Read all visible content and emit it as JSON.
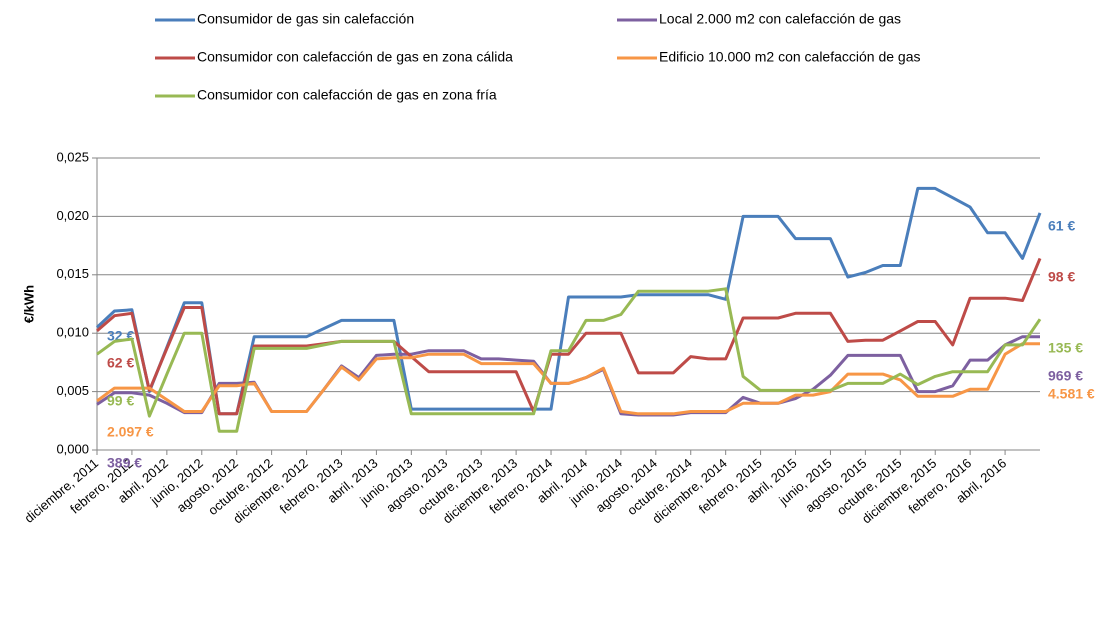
{
  "chart_data": {
    "type": "line",
    "ylabel": "€/kWh",
    "categories": [
      "diciembre, 2011",
      null,
      "febrero, 2012",
      null,
      "abril, 2012",
      null,
      "junio, 2012",
      null,
      "agosto, 2012",
      null,
      "octubre, 2012",
      null,
      "diciembre, 2012",
      null,
      "febrero, 2013",
      null,
      "abril, 2013",
      null,
      "junio, 2013",
      null,
      "agosto, 2013",
      null,
      "octubre, 2013",
      null,
      "diciembre, 2013",
      null,
      "febrero, 2014",
      null,
      "abril, 2014",
      null,
      "junio, 2014",
      null,
      "agosto, 2014",
      null,
      "octubre, 2014",
      null,
      "diciembre, 2014",
      null,
      "febrero, 2015",
      null,
      "abril, 2015",
      null,
      "junio, 2015",
      null,
      "agosto, 2015",
      null,
      "octubre, 2015",
      null,
      "diciembre, 2015",
      null,
      "febrero, 2016",
      null,
      "abril, 2016",
      null,
      null
    ],
    "ylim": [
      0,
      0.025
    ],
    "yticks": [
      {
        "value": 0,
        "label": "0,000"
      },
      {
        "value": 0.005,
        "label": "0,005"
      },
      {
        "value": 0.01,
        "label": "0,010"
      },
      {
        "value": 0.015,
        "label": "0,015"
      },
      {
        "value": 0.02,
        "label": "0,020"
      },
      {
        "value": 0.025,
        "label": "0,025"
      }
    ],
    "grid": true,
    "legend": "top",
    "series": [
      {
        "name": "Consumidor de gas sin calefacción",
        "color": "#4a7ebb",
        "start_label": "32 €",
        "end_label": "61 €",
        "values": [
          0.0105,
          0.0119,
          0.012,
          0.005,
          0.0088,
          0.0126,
          0.0126,
          0.0031,
          0.0031,
          0.0097,
          0.0097,
          0.0097,
          0.0097,
          0.0104,
          0.0111,
          0.0111,
          0.0111,
          0.0111,
          0.0035,
          0.0035,
          0.0035,
          0.0035,
          0.0035,
          0.0035,
          0.0035,
          0.0035,
          0.0035,
          0.0131,
          0.0131,
          0.0131,
          0.0131,
          0.0133,
          0.0133,
          0.0133,
          0.0133,
          0.0133,
          0.0129,
          0.02,
          0.02,
          0.02,
          0.0181,
          0.0181,
          0.0181,
          0.0148,
          0.0152,
          0.0158,
          0.0158,
          0.0224,
          0.0224,
          0.0216,
          0.0208,
          0.0186,
          0.0186,
          0.0164,
          0.0203
        ]
      },
      {
        "name": "Local 2.000 m2 con calefacción de gas",
        "color": "#7d60a0",
        "start_label": "389 €",
        "end_label": "969 €",
        "values": [
          0.0039,
          0.0049,
          0.0049,
          0.0047,
          0.004,
          0.0032,
          0.0032,
          0.0057,
          0.0057,
          0.0058,
          0.0033,
          0.0033,
          0.0033,
          0.0052,
          0.0072,
          0.0062,
          0.0081,
          0.0082,
          0.0082,
          0.0085,
          0.0085,
          0.0085,
          0.0078,
          0.0078,
          0.0077,
          0.0076,
          0.0057,
          0.0057,
          0.0062,
          0.0069,
          0.0031,
          0.003,
          0.003,
          0.003,
          0.0032,
          0.0032,
          0.0032,
          0.0045,
          0.004,
          0.004,
          0.0044,
          0.0052,
          0.0064,
          0.0081,
          0.0081,
          0.0081,
          0.0081,
          0.005,
          0.005,
          0.0055,
          0.0077,
          0.0077,
          0.009,
          0.0097,
          0.0097
        ]
      },
      {
        "name": "Consumidor con calefacción de gas en zona cálida",
        "color": "#be4b48",
        "start_label": "62 €",
        "end_label": "98 €",
        "values": [
          0.0102,
          0.0115,
          0.0117,
          0.0051,
          0.0087,
          0.0122,
          0.0122,
          0.0031,
          0.0031,
          0.0089,
          0.0089,
          0.0089,
          0.0089,
          0.0091,
          0.0093,
          0.0093,
          0.0093,
          0.0093,
          0.008,
          0.0067,
          0.0067,
          0.0067,
          0.0067,
          0.0067,
          0.0067,
          0.0033,
          0.0082,
          0.0082,
          0.01,
          0.01,
          0.01,
          0.0066,
          0.0066,
          0.0066,
          0.008,
          0.0078,
          0.0078,
          0.0113,
          0.0113,
          0.0113,
          0.0117,
          0.0117,
          0.0117,
          0.0093,
          0.0094,
          0.0094,
          0.0102,
          0.011,
          0.011,
          0.009,
          0.013,
          0.013,
          0.013,
          0.0128,
          0.0164
        ]
      },
      {
        "name": "Edificio 10.000 m2 con calefacción de gas",
        "color": "#f79646",
        "start_label": "2.097 €",
        "end_label": "4.581 €",
        "values": [
          0.0042,
          0.0053,
          0.0053,
          0.0053,
          0.0043,
          0.0033,
          0.0033,
          0.0055,
          0.0055,
          0.0057,
          0.0033,
          0.0033,
          0.0033,
          0.0052,
          0.0071,
          0.006,
          0.0078,
          0.0079,
          0.0079,
          0.0082,
          0.0082,
          0.0082,
          0.0074,
          0.0074,
          0.0074,
          0.0074,
          0.0057,
          0.0057,
          0.0062,
          0.007,
          0.0033,
          0.0031,
          0.0031,
          0.0031,
          0.0033,
          0.0033,
          0.0033,
          0.004,
          0.004,
          0.004,
          0.0047,
          0.0047,
          0.005,
          0.0065,
          0.0065,
          0.0065,
          0.006,
          0.0046,
          0.0046,
          0.0046,
          0.0052,
          0.0052,
          0.0082,
          0.0091,
          0.0091
        ]
      },
      {
        "name": "Consumidor con calefacción de gas en zona fría",
        "color": "#98b954",
        "start_label": "99 €",
        "end_label": "135 €",
        "values": [
          0.0082,
          0.0093,
          0.0095,
          0.0029,
          0.0065,
          0.01,
          0.01,
          0.0016,
          0.0016,
          0.0087,
          0.0087,
          0.0087,
          0.0087,
          0.009,
          0.0093,
          0.0093,
          0.0093,
          0.0093,
          0.0031,
          0.0031,
          0.0031,
          0.0031,
          0.0031,
          0.0031,
          0.0031,
          0.0031,
          0.0085,
          0.0085,
          0.0111,
          0.0111,
          0.0116,
          0.0136,
          0.0136,
          0.0136,
          0.0136,
          0.0136,
          0.0138,
          0.0063,
          0.0051,
          0.0051,
          0.0051,
          0.0051,
          0.0051,
          0.0057,
          0.0057,
          0.0057,
          0.0065,
          0.0056,
          0.0063,
          0.0067,
          0.0067,
          0.0067,
          0.009,
          0.009,
          0.0112
        ]
      }
    ]
  }
}
